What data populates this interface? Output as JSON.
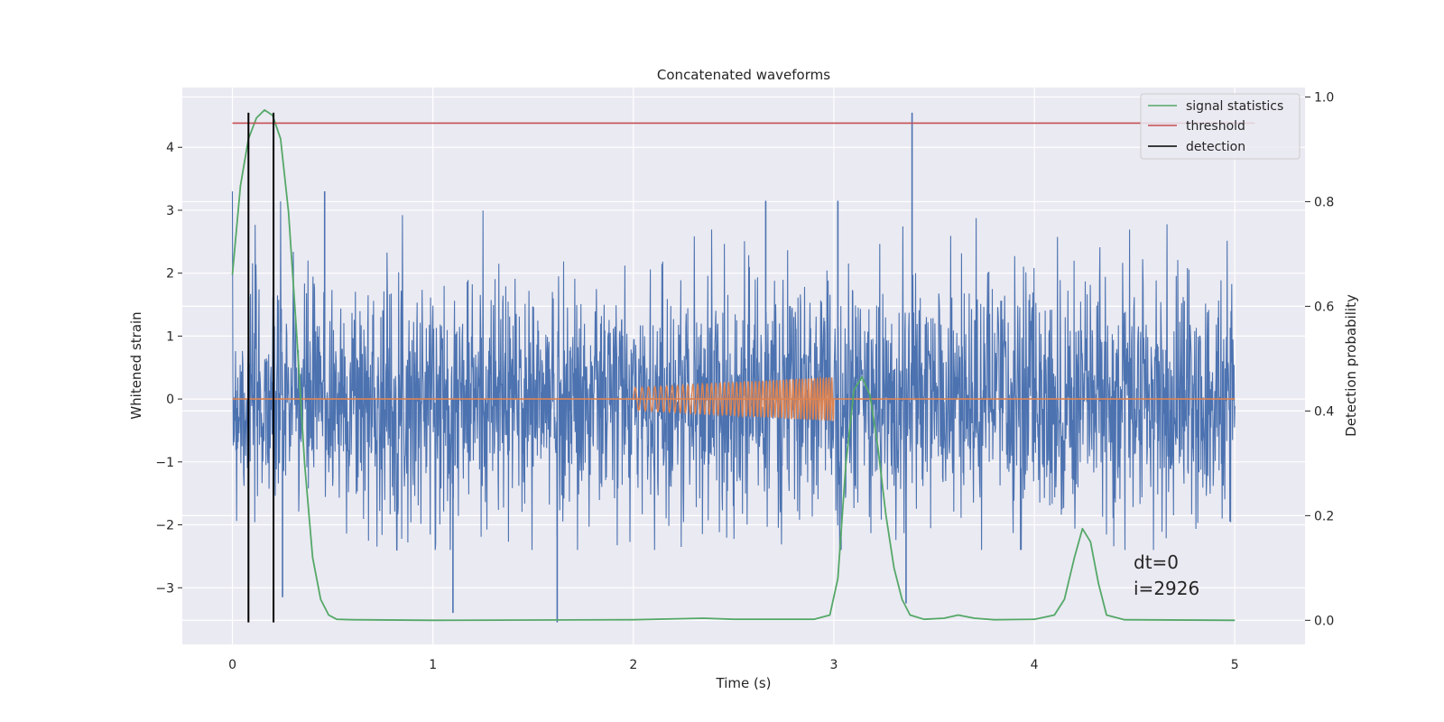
{
  "chart_data": {
    "type": "line",
    "title": "Concatenated waveforms",
    "xlabel": "Time (s)",
    "ylabel": "Whitened strain",
    "y2label": "Detection probability",
    "xlim": [
      -0.25,
      5.35
    ],
    "ylim": [
      -3.9,
      4.95
    ],
    "y2lim": [
      -0.046,
      1.018
    ],
    "xticks": [
      0,
      1,
      2,
      3,
      4,
      5
    ],
    "yticks": [
      -3,
      -2,
      -1,
      0,
      1,
      2,
      3,
      4
    ],
    "y2ticks": [
      0.0,
      0.2,
      0.4,
      0.6,
      0.8,
      1.0
    ],
    "xtick_labels": [
      "0",
      "1",
      "2",
      "3",
      "4",
      "5"
    ],
    "ytick_labels": [
      "−3",
      "−2",
      "−1",
      "0",
      "1",
      "2",
      "3",
      "4"
    ],
    "y2tick_labels": [
      "0.0",
      "0.2",
      "0.4",
      "0.6",
      "0.8",
      "1.0"
    ],
    "grid": true,
    "legend_position": "top-right",
    "legend": [
      {
        "label": "signal statistics",
        "color": "#55a868"
      },
      {
        "label": "threshold",
        "color": "#c44e52"
      },
      {
        "label": "detection",
        "color": "#000000"
      }
    ],
    "series": [
      {
        "name": "",
        "axis": "left",
        "color": "#4c72b0",
        "kind": "noise",
        "x_range": [
          0,
          5
        ],
        "envelope": [
          -2.4,
          3.3
        ],
        "spikes": [
          {
            "x": 0.46,
            "y": 3.3
          },
          {
            "x": 1.1,
            "y": -3.4
          },
          {
            "x": 1.62,
            "y": -3.55
          },
          {
            "x": 2.66,
            "y": 3.15
          },
          {
            "x": 3.02,
            "y": 3.15
          },
          {
            "x": 3.39,
            "y": 4.55
          },
          {
            "x": 3.36,
            "y": -3.25
          },
          {
            "x": 0.25,
            "y": -3.15
          },
          {
            "x": 0.08,
            "y": -2.85
          }
        ]
      },
      {
        "name": "",
        "axis": "left",
        "color": "#dd8452",
        "kind": "chirp",
        "x": [
          0,
          2,
          3,
          5
        ],
        "y_amplitude": [
          0,
          0.18,
          0.35,
          0
        ]
      },
      {
        "name": "signal statistics",
        "axis": "right",
        "color": "#55a868",
        "x": [
          0,
          0.04,
          0.08,
          0.12,
          0.16,
          0.2,
          0.24,
          0.28,
          0.32,
          0.36,
          0.4,
          0.44,
          0.48,
          0.52,
          0.6,
          1.0,
          2.0,
          2.35,
          2.5,
          2.9,
          2.98,
          3.02,
          3.06,
          3.1,
          3.14,
          3.18,
          3.22,
          3.26,
          3.3,
          3.34,
          3.38,
          3.45,
          3.55,
          3.62,
          3.7,
          3.8,
          4.0,
          4.1,
          4.15,
          4.2,
          4.24,
          4.28,
          4.32,
          4.36,
          4.45,
          5.0
        ],
        "y": [
          0.66,
          0.83,
          0.92,
          0.96,
          0.975,
          0.965,
          0.92,
          0.78,
          0.55,
          0.3,
          0.12,
          0.04,
          0.01,
          0.002,
          0.001,
          0.0,
          0.001,
          0.004,
          0.002,
          0.002,
          0.01,
          0.08,
          0.3,
          0.44,
          0.465,
          0.43,
          0.33,
          0.2,
          0.1,
          0.04,
          0.01,
          0.002,
          0.004,
          0.01,
          0.004,
          0.001,
          0.002,
          0.01,
          0.04,
          0.12,
          0.175,
          0.15,
          0.07,
          0.01,
          0.001,
          0.0
        ]
      },
      {
        "name": "threshold",
        "axis": "right",
        "color": "#c44e52",
        "x": [
          0,
          5.1
        ],
        "y": [
          0.95,
          0.95
        ]
      }
    ],
    "detections": [
      0.08,
      0.205
    ],
    "detection_ylim": [
      -3.55,
      4.55
    ],
    "annotations": [
      "dt=0",
      "i=2926"
    ]
  }
}
